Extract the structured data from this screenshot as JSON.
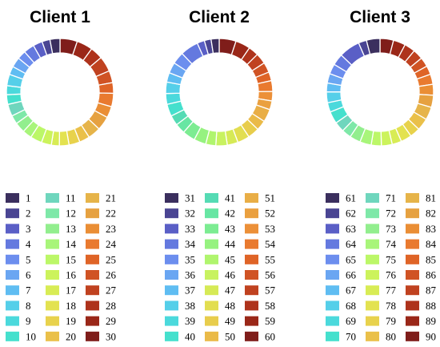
{
  "chart_data": [
    {
      "type": "pie",
      "title": "Client 1",
      "labels": [
        "1",
        "2",
        "3",
        "4",
        "5",
        "6",
        "7",
        "8",
        "9",
        "10",
        "11",
        "12",
        "13",
        "14",
        "15",
        "16",
        "17",
        "18",
        "19",
        "20",
        "21",
        "22",
        "23",
        "24",
        "25",
        "26",
        "27",
        "28",
        "29",
        "30"
      ],
      "values": [
        3.0,
        2.4,
        2.8,
        3.2,
        2.6,
        3.0,
        2.5,
        3.4,
        2.7,
        2.9,
        3.6,
        2.6,
        3.1,
        2.8,
        3.5,
        3.0,
        2.4,
        2.9,
        3.3,
        3.1,
        3.8,
        4.2,
        3.4,
        4.0,
        3.2,
        3.6,
        4.6,
        3.8,
        4.8,
        5.2
      ],
      "colors": [
        "#3b2f5e",
        "#4a4593",
        "#5a5fc6",
        "#6479df",
        "#6c8eee",
        "#6aa6f2",
        "#5fbdf2",
        "#55cfe9",
        "#4bd9dc",
        "#45e0cd",
        "#6fd6bd",
        "#7ee8a8",
        "#92ee8e",
        "#a8f57a",
        "#bcf768",
        "#ccf35c",
        "#d8ec55",
        "#e3e250",
        "#e8d24c",
        "#eac049",
        "#e6b44a",
        "#e6a140",
        "#ea8e35",
        "#e97a2f",
        "#df6427",
        "#d05324",
        "#c04220",
        "#ae331c",
        "#9a2718",
        "#7f1d1a"
      ],
      "legend": "below"
    },
    {
      "type": "pie",
      "title": "Client 2",
      "labels": [
        "31",
        "32",
        "33",
        "34",
        "35",
        "36",
        "37",
        "38",
        "39",
        "40",
        "41",
        "42",
        "43",
        "44",
        "45",
        "46",
        "47",
        "48",
        "49",
        "50",
        "51",
        "52",
        "53",
        "54",
        "55",
        "56",
        "57",
        "58",
        "59",
        "60"
      ],
      "values": [
        2.4,
        2.0,
        2.2,
        5.4,
        3.6,
        3.2,
        2.8,
        3.4,
        3.2,
        3.6,
        3.0,
        3.0,
        3.8,
        3.6,
        3.0,
        3.4,
        3.2,
        3.6,
        3.4,
        3.0,
        3.8,
        2.6,
        2.8,
        3.2,
        2.6,
        3.0,
        3.2,
        3.0,
        4.4,
        5.0
      ],
      "colors": [
        "#3b2f5e",
        "#4a4593",
        "#5a5fc6",
        "#6479df",
        "#6c8eee",
        "#6aa6f2",
        "#5fbdf2",
        "#55cfe9",
        "#4bd9dc",
        "#45e0cd",
        "#55dbb4",
        "#67e6a3",
        "#7cec92",
        "#96f280",
        "#b0f56e",
        "#c8f260",
        "#d6ea56",
        "#e2de50",
        "#e8cd4c",
        "#eaba48",
        "#e9ae46",
        "#eaa03f",
        "#ec9038",
        "#e97a2f",
        "#df6427",
        "#d05324",
        "#c04220",
        "#ae331c",
        "#9a2718",
        "#7f1d1a"
      ],
      "legend": "below"
    },
    {
      "type": "pie",
      "title": "Client 3",
      "labels": [
        "61",
        "62",
        "63",
        "64",
        "65",
        "66",
        "67",
        "68",
        "69",
        "70",
        "71",
        "72",
        "73",
        "74",
        "75",
        "76",
        "77",
        "78",
        "79",
        "80",
        "81",
        "82",
        "83",
        "84",
        "85",
        "86",
        "87",
        "88",
        "89",
        "90"
      ],
      "values": [
        4.0,
        2.4,
        6.2,
        3.4,
        3.0,
        2.8,
        2.6,
        3.2,
        2.8,
        3.6,
        3.0,
        2.8,
        3.2,
        3.4,
        3.0,
        3.2,
        2.8,
        3.2,
        3.0,
        3.6,
        3.8,
        3.6,
        3.2,
        3.0,
        2.6,
        2.8,
        3.0,
        3.2,
        3.6,
        4.0
      ],
      "colors": [
        "#3b2f5e",
        "#4a4593",
        "#5a5fc6",
        "#6479df",
        "#6c8eee",
        "#6aa6f2",
        "#5fbdf2",
        "#55cfe9",
        "#4bd9dc",
        "#45e0cd",
        "#6fd6bd",
        "#7ee8a8",
        "#92ee8e",
        "#a8f57a",
        "#bcf768",
        "#ccf35c",
        "#d8ec55",
        "#e3e250",
        "#e8d24c",
        "#eac049",
        "#e6b44a",
        "#e6a140",
        "#ea8e35",
        "#e97a2f",
        "#df6427",
        "#d05324",
        "#c04220",
        "#ae331c",
        "#9a2718",
        "#7f1d1a"
      ],
      "legend": "below"
    }
  ]
}
